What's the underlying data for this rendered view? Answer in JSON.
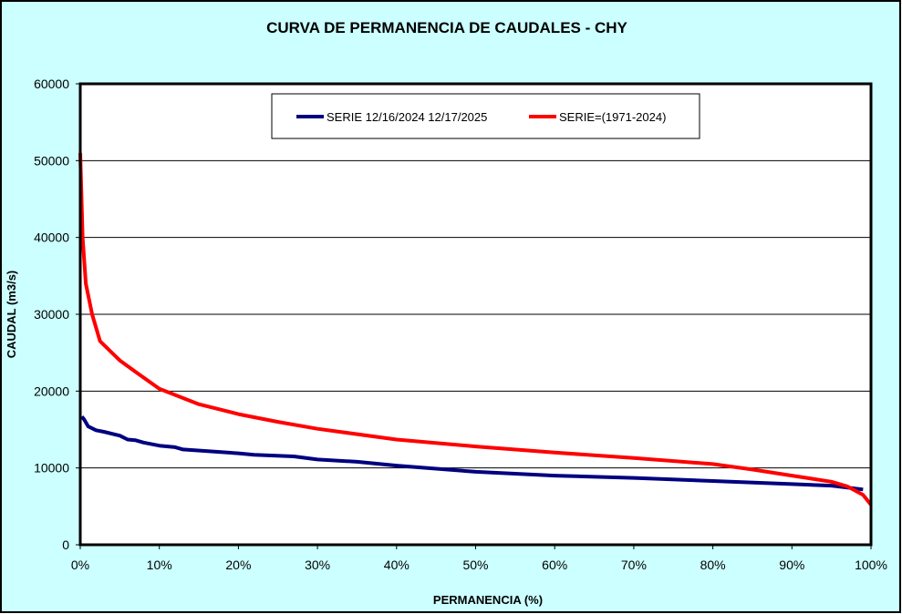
{
  "chart_data": {
    "type": "line",
    "title": "CURVA DE PERMANENCIA DE CAUDALES - CHY",
    "xlabel": "PERMANENCIA (%)",
    "ylabel": "CAUDAL (m3/s)",
    "xlim": [
      0,
      100
    ],
    "ylim": [
      0,
      60000
    ],
    "xticks": [
      "0%",
      "10%",
      "20%",
      "30%",
      "40%",
      "50%",
      "60%",
      "70%",
      "80%",
      "90%",
      "100%"
    ],
    "yticks": [
      "0",
      "10000",
      "20000",
      "30000",
      "40000",
      "50000",
      "60000"
    ],
    "grid": "horizontal",
    "legend": "top-center",
    "background": "#ccffff",
    "series": [
      {
        "name": "SERIE 12/16/2024 12/17/2025",
        "color": "#000080",
        "x": [
          0.2,
          0.5,
          1,
          2,
          3,
          5,
          6,
          7,
          8,
          10,
          12,
          13,
          20,
          22,
          27,
          30,
          35,
          40,
          45,
          50,
          60,
          70,
          80,
          90,
          95,
          99
        ],
        "y": [
          16700,
          16300,
          15400,
          14900,
          14700,
          14200,
          13700,
          13600,
          13300,
          12900,
          12700,
          12400,
          11900,
          11700,
          11500,
          11100,
          10800,
          10300,
          9900,
          9500,
          9000,
          8700,
          8300,
          7900,
          7700,
          7200
        ]
      },
      {
        "name": "SERIE=(1971-2024)",
        "color": "#ff0000",
        "x": [
          0,
          0.3,
          0.7,
          1.5,
          2.5,
          5,
          7,
          10,
          15,
          20,
          25,
          30,
          40,
          50,
          60,
          70,
          80,
          85,
          90,
          95,
          97,
          99,
          100
        ],
        "y": [
          51000,
          40000,
          34000,
          30000,
          26500,
          24000,
          22500,
          20300,
          18300,
          17000,
          16000,
          15100,
          13700,
          12800,
          12000,
          11300,
          10500,
          9800,
          9000,
          8200,
          7600,
          6500,
          5200
        ]
      }
    ]
  }
}
